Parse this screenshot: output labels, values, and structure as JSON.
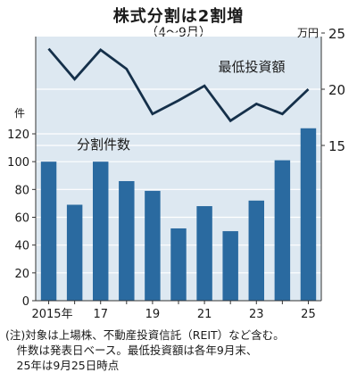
{
  "title": "株式分割は2割増",
  "subtitle": "（4～9月）",
  "notes": [
    "(注)対象は上場株、不動産投資信託（REIT）など含む。",
    "　件数は発表日ベース。最低投資額は各年9月末、",
    "　25年は9月25日時点"
  ],
  "colors": {
    "plot_bg": "#dde8f1",
    "bar": "#2a6aa0",
    "line": "#15304a",
    "grid": "#ffffff",
    "axis": "#333333"
  },
  "chart_data": {
    "type": "bar",
    "categories": [
      "2015",
      "2016",
      "2017",
      "2018",
      "2019",
      "2020",
      "2021",
      "2022",
      "2023",
      "2024",
      "2025"
    ],
    "x_tick_labels": [
      "2015年",
      "",
      "17",
      "",
      "19",
      "",
      "21",
      "",
      "23",
      "",
      "25"
    ],
    "series": [
      {
        "name": "分割件数",
        "type": "bar",
        "axis": "left",
        "values": [
          100,
          69,
          100,
          86,
          79,
          52,
          68,
          50,
          72,
          101,
          124
        ]
      },
      {
        "name": "最低投資額",
        "type": "line",
        "axis": "right",
        "values": [
          23.6,
          20.9,
          23.5,
          21.8,
          17.8,
          19.0,
          20.3,
          17.2,
          18.7,
          17.8,
          20.0
        ]
      }
    ],
    "y_left": {
      "label": "件",
      "ylim": [
        0,
        120
      ],
      "ticks": [
        0,
        20,
        40,
        60,
        80,
        100,
        120
      ]
    },
    "y_right": {
      "label": "万円",
      "ylim": [
        15,
        25
      ],
      "ticks": [
        15,
        20,
        25
      ]
    },
    "grid": true
  }
}
